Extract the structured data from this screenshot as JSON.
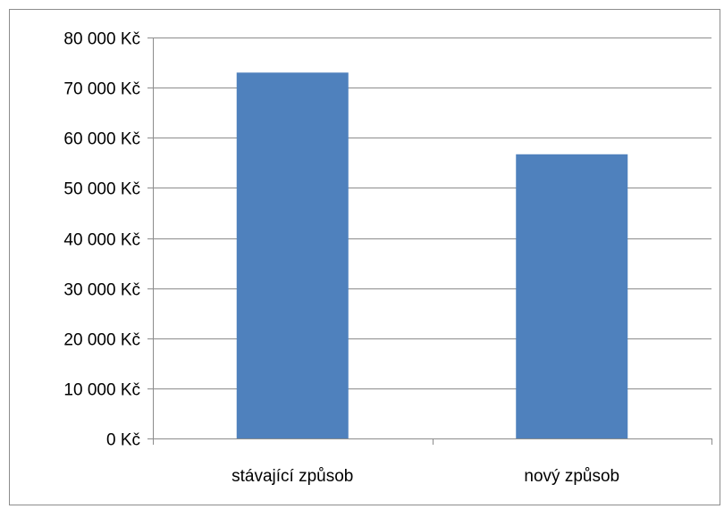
{
  "chart_data": {
    "type": "bar",
    "title": "",
    "xlabel": "",
    "ylabel": "",
    "categories": [
      "stávající způsob",
      "nový způsob"
    ],
    "values": [
      73000,
      56700
    ],
    "ylim": [
      0,
      80000
    ],
    "yticks": [
      0,
      10000,
      20000,
      30000,
      40000,
      50000,
      60000,
      70000,
      80000
    ],
    "ytick_labels": [
      "0 Kč",
      "10 000 Kč",
      "20 000 Kč",
      "30 000 Kč",
      "40 000 Kč",
      "50 000 Kč",
      "60 000 Kč",
      "70 000 Kč",
      "80 000 Kč"
    ],
    "grid": true,
    "legend": "none",
    "bar_color": "#4f81bd",
    "gridline_color": "#8c8c8c",
    "axis_color": "#8c8c8c",
    "text_color": "#000000"
  }
}
